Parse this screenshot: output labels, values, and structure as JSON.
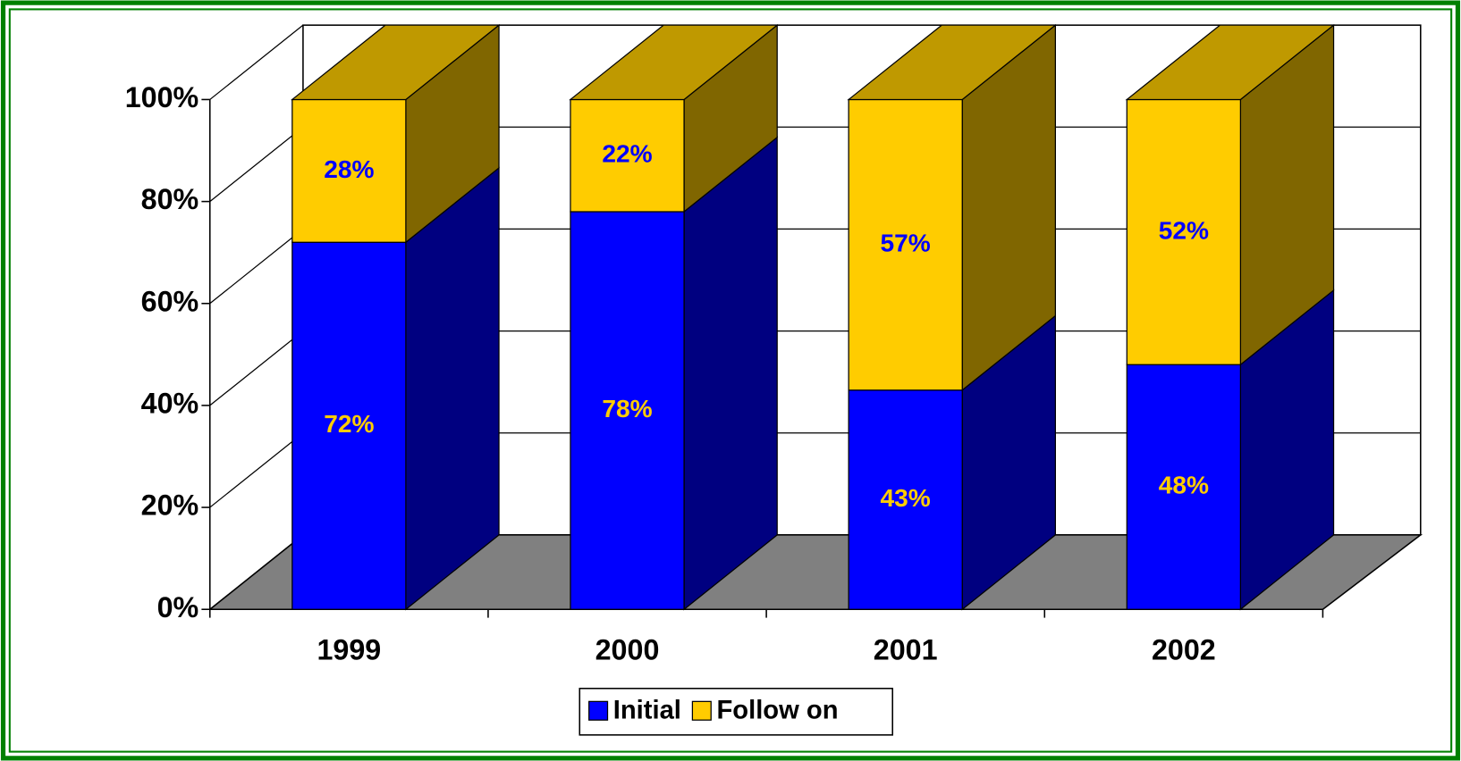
{
  "chart_data": {
    "type": "bar",
    "stacked": true,
    "categories": [
      "1999",
      "2000",
      "2001",
      "2002"
    ],
    "series": [
      {
        "name": "Initial",
        "color": "#0000ff",
        "values": [
          72,
          78,
          43,
          48
        ],
        "value_labels": [
          "72%",
          "78%",
          "43%",
          "48%"
        ]
      },
      {
        "name": "Follow on",
        "color": "#ffcc00",
        "values": [
          28,
          22,
          57,
          52
        ],
        "value_labels": [
          "28%",
          "22%",
          "57%",
          "52%"
        ]
      }
    ],
    "ylim": [
      0,
      100
    ],
    "yticks": [
      {
        "value": 0,
        "label": "0%"
      },
      {
        "value": 20,
        "label": "20%"
      },
      {
        "value": 40,
        "label": "40%"
      },
      {
        "value": 60,
        "label": "60%"
      },
      {
        "value": 80,
        "label": "80%"
      },
      {
        "value": 100,
        "label": "100%"
      }
    ],
    "grid": true,
    "legend": "bottom"
  }
}
